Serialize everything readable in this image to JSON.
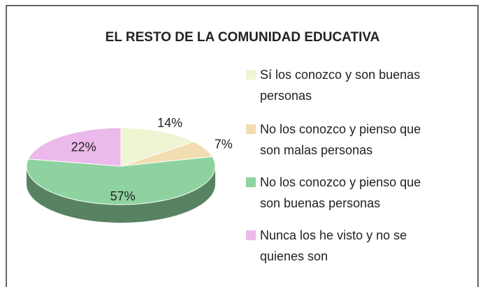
{
  "chart_data": {
    "type": "pie3d",
    "title": "EL RESTO DE LA COMUNIDAD EDUCATIVA",
    "categories": [
      "Sí los conozco y son buenas personas",
      "No los conozco y pienso que son malas personas",
      "No los conozco y pienso que son buenas personas",
      "Nunca los he visto y no se quienes son"
    ],
    "values": [
      14,
      7,
      57,
      22
    ],
    "value_labels": [
      "14%",
      "7%",
      "57%",
      "22%"
    ],
    "colors": [
      "#eef5d2",
      "#f2ddb0",
      "#8ed39f",
      "#ebb9ea"
    ],
    "legend": "right"
  }
}
